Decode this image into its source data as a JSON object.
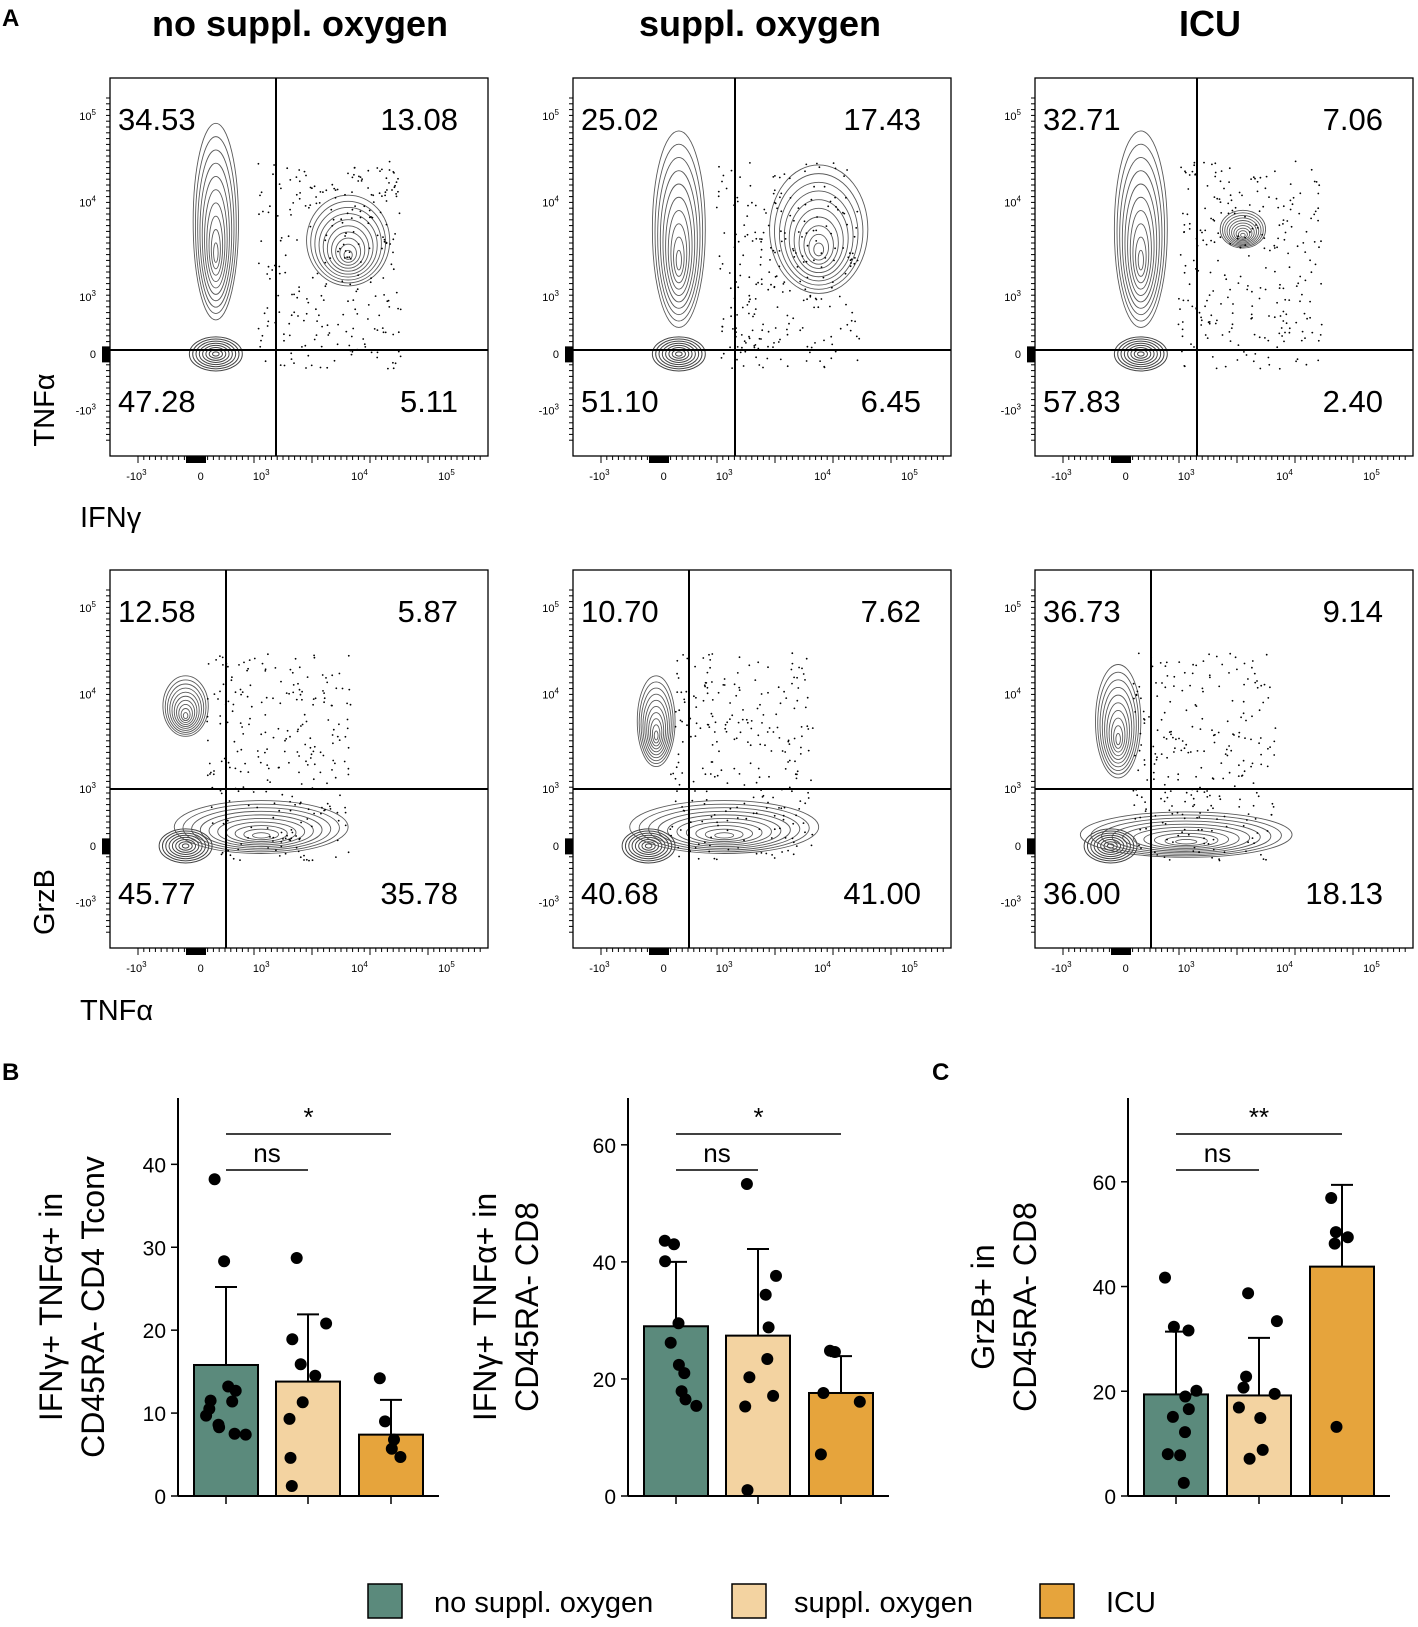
{
  "figure": {
    "panel_letters": [
      "A",
      "B",
      "C"
    ],
    "column_titles": [
      "no suppl. oxygen",
      "suppl. oxygen",
      "ICU"
    ]
  },
  "chart_data": [
    {
      "type": "scatter",
      "subtype": "flow-cytometry-contour",
      "row": "TNFα vs IFNγ",
      "xlabel": "IFNγ",
      "ylabel": "TNFα",
      "x_ticks": [
        "-10^3",
        "0",
        "10^3",
        "10^4",
        "10^5"
      ],
      "y_ticks": [
        "10^5",
        "10^4",
        "10^3",
        "0",
        "-10^3"
      ],
      "panels": [
        {
          "condition": "no suppl. oxygen",
          "quadrants": {
            "top_left": "34.53",
            "top_right": "13.08",
            "bottom_left": "47.28",
            "bottom_right": "5.11"
          }
        },
        {
          "condition": "suppl. oxygen",
          "quadrants": {
            "top_left": "25.02",
            "top_right": "17.43",
            "bottom_left": "51.10",
            "bottom_right": "6.45"
          }
        },
        {
          "condition": "ICU",
          "quadrants": {
            "top_left": "32.71",
            "top_right": "7.06",
            "bottom_left": "57.83",
            "bottom_right": "2.40"
          }
        }
      ]
    },
    {
      "type": "scatter",
      "subtype": "flow-cytometry-contour",
      "row": "GrzB vs TNFα",
      "xlabel": "TNFα",
      "ylabel": "GrzB",
      "x_ticks": [
        "-10^3",
        "0",
        "10^3",
        "10^4",
        "10^5"
      ],
      "y_ticks": [
        "10^5",
        "10^4",
        "10^3",
        "0",
        "-10^3"
      ],
      "panels": [
        {
          "condition": "no suppl. oxygen",
          "quadrants": {
            "top_left": "12.58",
            "top_right": "5.87",
            "bottom_left": "45.77",
            "bottom_right": "35.78"
          }
        },
        {
          "condition": "suppl. oxygen",
          "quadrants": {
            "top_left": "10.70",
            "top_right": "7.62",
            "bottom_left": "40.68",
            "bottom_right": "41.00"
          }
        },
        {
          "condition": "ICU",
          "quadrants": {
            "top_left": "36.73",
            "top_right": "9.14",
            "bottom_left": "36.00",
            "bottom_right": "18.13"
          }
        }
      ]
    },
    {
      "type": "bar",
      "panel": "B1",
      "ylabel_lines": [
        "IFNγ+ TNFα+ in",
        "CD45RA- CD4 Tconv"
      ],
      "categories": [
        "no suppl. oxygen",
        "suppl. oxygen",
        "ICU"
      ],
      "values": [
        15.8,
        13.8,
        7.4
      ],
      "error_upper": [
        25.2,
        21.9,
        11.6
      ],
      "points": [
        [
          38.2,
          28.3,
          12.7,
          11.5,
          9.7,
          8.3,
          7.4,
          13.2,
          10.5,
          8.6,
          7.5,
          11.4
        ],
        [
          28.7,
          20.8,
          18.9,
          15.9,
          11.3,
          9.3,
          4.6,
          1.2,
          14.5
        ],
        [
          14.2,
          9.0,
          6.8,
          5.7,
          4.7
        ]
      ],
      "ylim": [
        0,
        48
      ],
      "yticks": [
        0,
        10,
        20,
        30,
        40
      ],
      "significance": [
        {
          "from": 0,
          "to": 2,
          "label": "*"
        },
        {
          "from": 0,
          "to": 1,
          "label": "ns"
        }
      ]
    },
    {
      "type": "bar",
      "panel": "B2",
      "ylabel_lines": [
        "IFNγ+ TNFα+ in",
        "CD45RA- CD8"
      ],
      "categories": [
        "no suppl. oxygen",
        "suppl. oxygen",
        "ICU"
      ],
      "values": [
        29.0,
        27.4,
        17.6
      ],
      "error_upper": [
        40.0,
        42.2,
        23.9
      ],
      "points": [
        [
          43.6,
          43.0,
          40.1,
          29.5,
          26.2,
          22.4,
          21.0,
          17.9,
          16.5,
          15.4
        ],
        [
          53.3,
          37.6,
          34.4,
          28.8,
          23.4,
          20.3,
          17.1,
          15.3,
          1.0
        ],
        [
          24.8,
          24.6,
          17.6,
          16.1,
          7.1
        ]
      ],
      "ylim": [
        0,
        68
      ],
      "yticks": [
        0,
        20,
        40,
        60
      ],
      "significance": [
        {
          "from": 0,
          "to": 2,
          "label": "*"
        },
        {
          "from": 0,
          "to": 1,
          "label": "ns"
        }
      ]
    },
    {
      "type": "bar",
      "panel": "C",
      "ylabel_lines": [
        "GrzB+ in",
        "CD45RA- CD8"
      ],
      "categories": [
        "no suppl. oxygen",
        "suppl. oxygen",
        "ICU"
      ],
      "values": [
        19.4,
        19.2,
        43.8
      ],
      "error_upper": [
        31.4,
        30.2,
        59.4
      ],
      "points": [
        [
          41.7,
          32.3,
          31.6,
          20.1,
          19.0,
          16.6,
          15.1,
          12.2,
          8.0,
          7.8,
          2.5
        ],
        [
          38.7,
          33.4,
          22.8,
          20.7,
          16.9,
          14.9,
          8.8,
          7.1,
          19.5
        ],
        [
          56.9,
          50.4,
          49.4,
          48.2,
          13.2
        ]
      ],
      "ylim": [
        0,
        76
      ],
      "yticks": [
        0,
        20,
        40,
        60
      ],
      "significance": [
        {
          "from": 0,
          "to": 2,
          "label": "**"
        },
        {
          "from": 0,
          "to": 1,
          "label": "ns"
        }
      ]
    }
  ],
  "legend": {
    "items": [
      {
        "label": "no suppl. oxygen",
        "color": "#5b8a7c"
      },
      {
        "label": "suppl. oxygen",
        "color": "#f3d3a1"
      },
      {
        "label": "ICU",
        "color": "#e6a43c"
      }
    ]
  }
}
